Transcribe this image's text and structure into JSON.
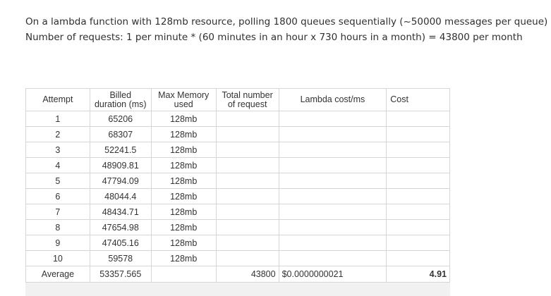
{
  "intro": {
    "line1": "On a lambda function with 128mb resource, polling 1800 queues sequentially (~50000 messages per queue)",
    "line2": "Number of requests: 1 per minute * (60 minutes in an hour x 730 hours in a month) = 43800 per month"
  },
  "table": {
    "headers": {
      "attempt": "Attempt",
      "billed_l1": "Billed",
      "billed_l2": "duration (ms)",
      "memory_l1": "Max Memory",
      "memory_l2": "used",
      "requests_l1": "Total number",
      "requests_l2": "of request",
      "lambda_cost": "Lambda cost/ms",
      "cost": "Cost"
    },
    "rows": [
      {
        "attempt": "1",
        "billed": "65206",
        "memory": "128mb"
      },
      {
        "attempt": "2",
        "billed": "68307",
        "memory": "128mb"
      },
      {
        "attempt": "3",
        "billed": "52241.5",
        "memory": "128mb"
      },
      {
        "attempt": "4",
        "billed": "48909.81",
        "memory": "128mb"
      },
      {
        "attempt": "5",
        "billed": "47794.09",
        "memory": "128mb"
      },
      {
        "attempt": "6",
        "billed": "48044.4",
        "memory": "128mb"
      },
      {
        "attempt": "7",
        "billed": "48434.71",
        "memory": "128mb"
      },
      {
        "attempt": "8",
        "billed": "47654.98",
        "memory": "128mb"
      },
      {
        "attempt": "9",
        "billed": "47405.16",
        "memory": "128mb"
      },
      {
        "attempt": "10",
        "billed": "59578",
        "memory": "128mb"
      }
    ],
    "average": {
      "label": "Average",
      "billed": "53357.565",
      "memory": "",
      "requests": "43800",
      "lambda_cost": "$0.0000000021",
      "cost": "4.91"
    }
  }
}
